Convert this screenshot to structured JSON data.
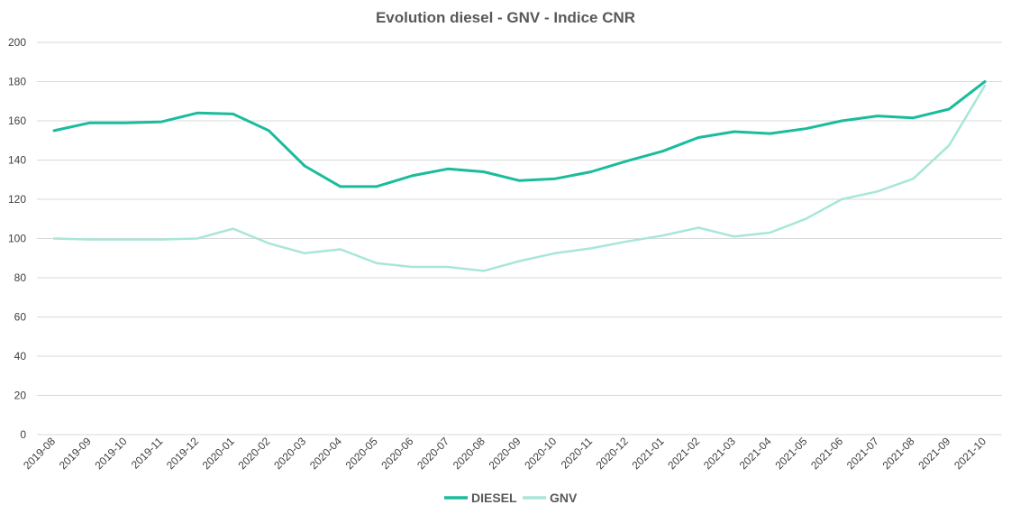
{
  "chart_data": {
    "type": "line",
    "title": "Evolution diesel - GNV - Indice CNR",
    "xlabel": "",
    "ylabel": "",
    "ylim": [
      0,
      200
    ],
    "yticks": [
      0,
      20,
      40,
      60,
      80,
      100,
      120,
      140,
      160,
      180,
      200
    ],
    "grid": true,
    "legend_position": "bottom",
    "x": [
      "2019-08",
      "2019-09",
      "2019-10",
      "2019-11",
      "2019-12",
      "2020-01",
      "2020-02",
      "2020-03",
      "2020-04",
      "2020-05",
      "2020-06",
      "2020-07",
      "2020-08",
      "2020-09",
      "2020-10",
      "2020-11",
      "2020-12",
      "2021-01",
      "2021-02",
      "2021-03",
      "2021-04",
      "2021-05",
      "2021-06",
      "2021-07",
      "2021-08",
      "2021-09",
      "2021-10"
    ],
    "series": [
      {
        "name": "DIESEL",
        "color": "#1abc9c",
        "values": [
          155,
          159,
          159,
          159.5,
          164,
          163.5,
          155,
          137,
          126.5,
          126.5,
          132,
          135.5,
          134,
          129.5,
          130.5,
          134,
          139.5,
          144.5,
          151.5,
          154.5,
          153.5,
          156,
          160,
          162.5,
          161.5,
          166,
          180
        ]
      },
      {
        "name": "GNV",
        "color": "#a8e6d9",
        "values": [
          100,
          99.5,
          99.5,
          99.5,
          100,
          105,
          97.5,
          92.5,
          94.5,
          87.5,
          85.5,
          85.5,
          83.5,
          88.5,
          92.5,
          95,
          98.5,
          101.5,
          105.5,
          101,
          103,
          110,
          120,
          124,
          130.5,
          147.5,
          178
        ]
      }
    ]
  }
}
